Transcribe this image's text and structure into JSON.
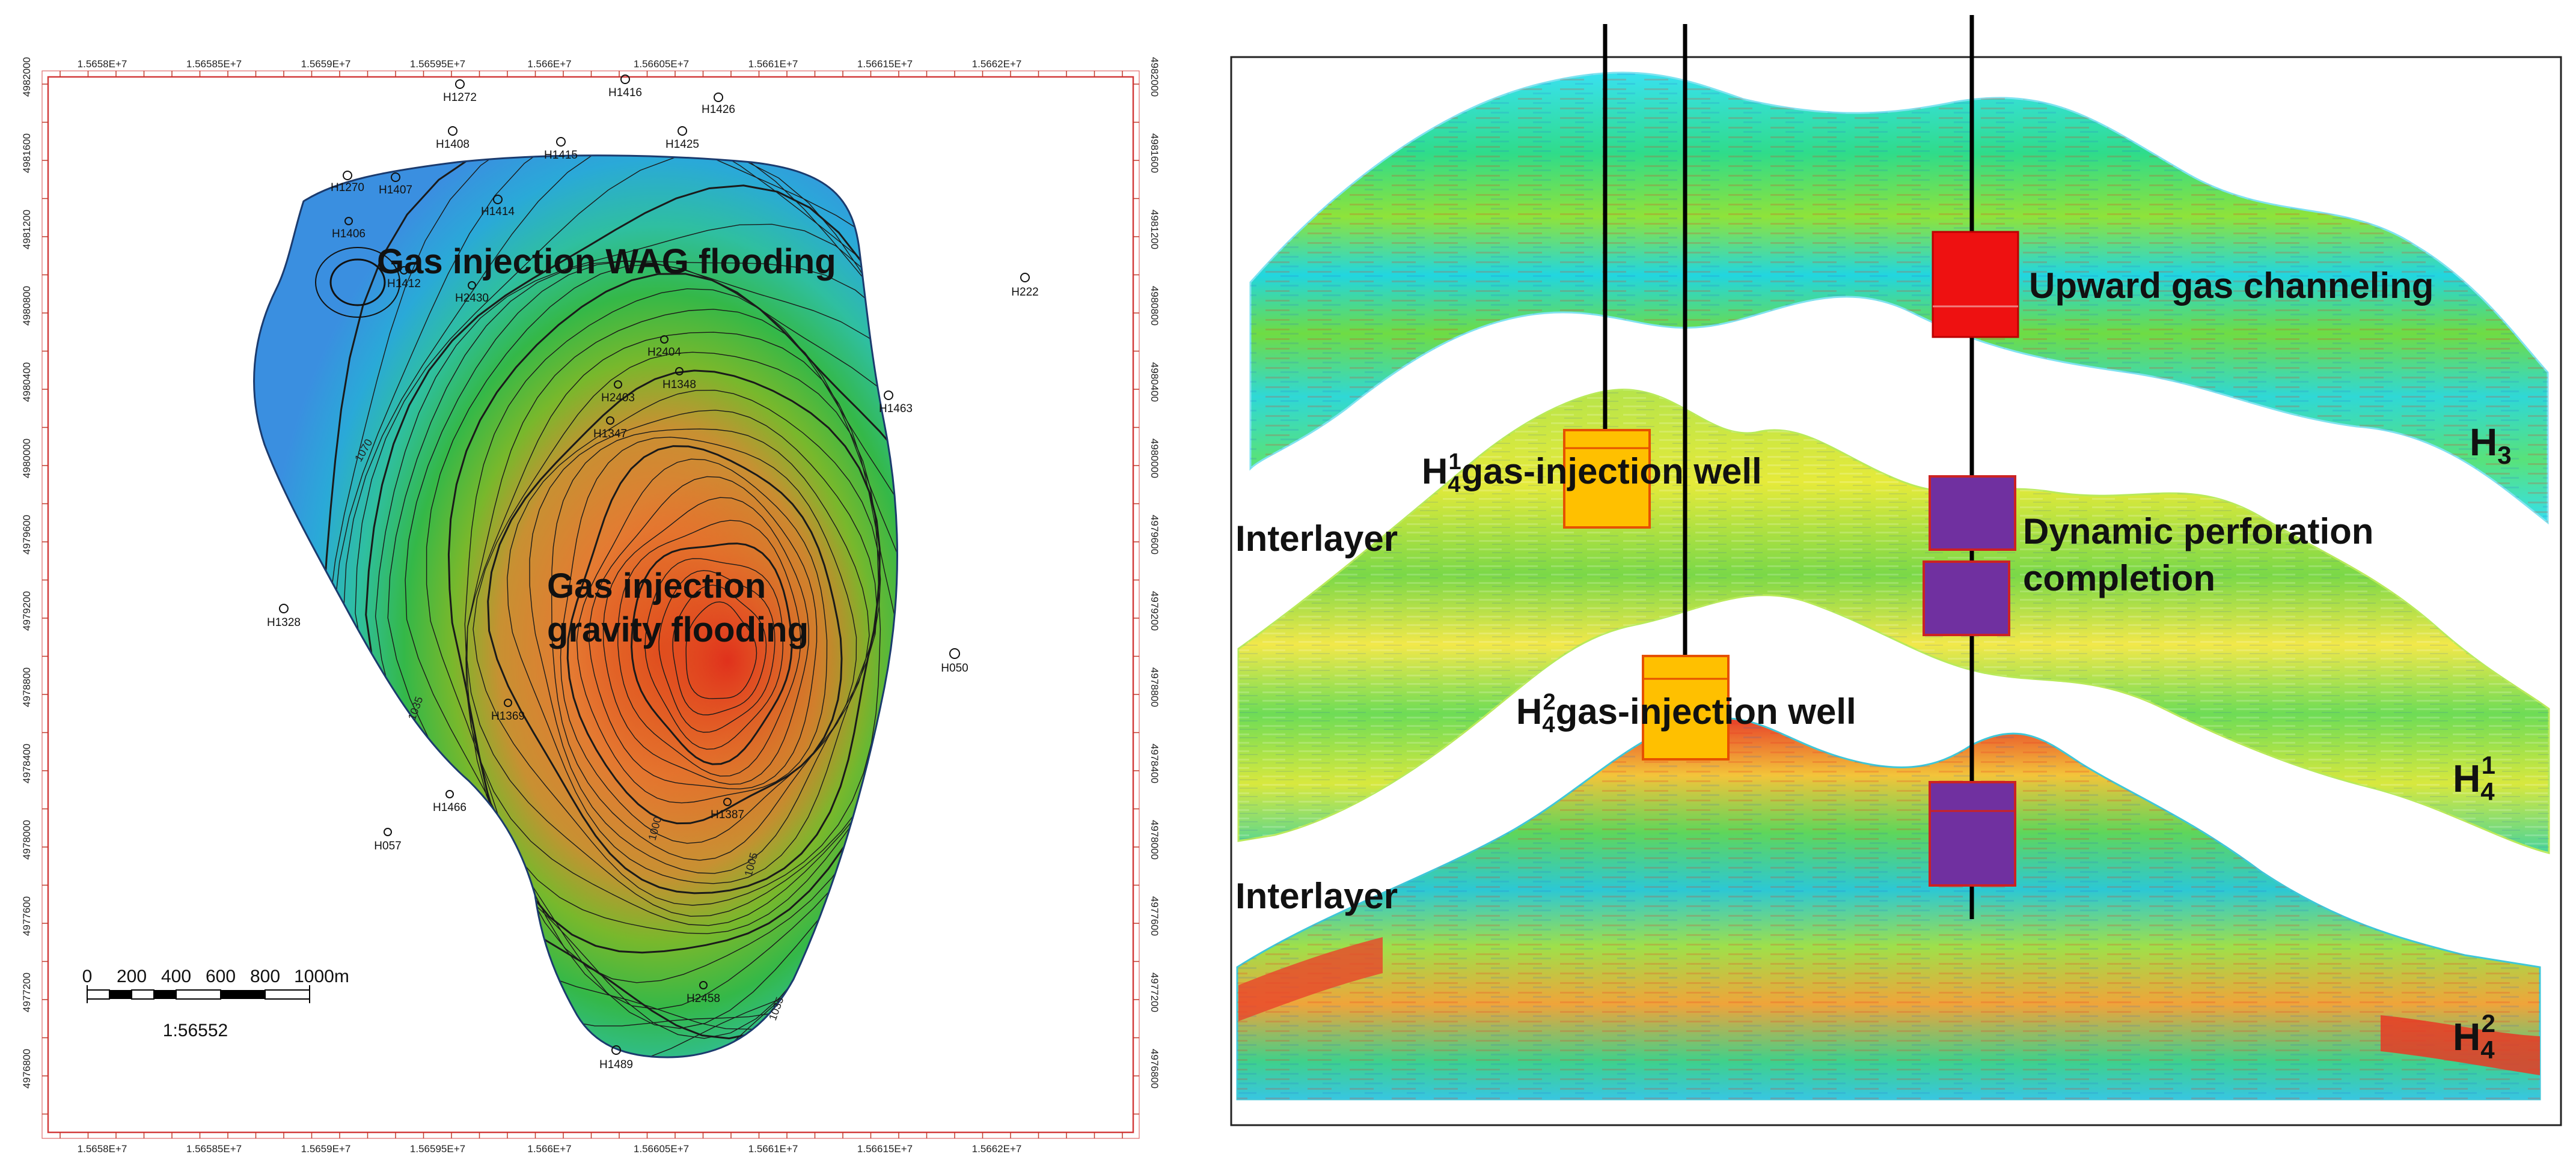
{
  "left_map": {
    "x_ticks": [
      "1.5658E+7",
      "1.56585E+7",
      "1.5659E+7",
      "1.56595E+7",
      "1.566E+7",
      "1.56605E+7",
      "1.5661E+7",
      "1.56615E+7",
      "1.5662E+7"
    ],
    "y_ticks": [
      "4982000",
      "4981600",
      "4981200",
      "4980800",
      "4980400",
      "4980000",
      "4979600",
      "4979200",
      "4978800",
      "4978400",
      "4978000",
      "4977600",
      "4977200",
      "4976800"
    ],
    "wells": [
      {
        "name": "H1272"
      },
      {
        "name": "H1416"
      },
      {
        "name": "H1426"
      },
      {
        "name": "H1408"
      },
      {
        "name": "H1415"
      },
      {
        "name": "H1425"
      },
      {
        "name": "H1270"
      },
      {
        "name": "H1407"
      },
      {
        "name": "H1414"
      },
      {
        "name": "H1406"
      },
      {
        "name": "H1412"
      },
      {
        "name": "H2430"
      },
      {
        "name": "H2404"
      },
      {
        "name": "H2403"
      },
      {
        "name": "H1348"
      },
      {
        "name": "H1347"
      },
      {
        "name": "H1463"
      },
      {
        "name": "H222"
      },
      {
        "name": "H1328"
      },
      {
        "name": "H050"
      },
      {
        "name": "H057"
      },
      {
        "name": "H1489"
      },
      {
        "name": "H2458"
      },
      {
        "name": "H1387"
      },
      {
        "name": "H1369"
      },
      {
        "name": "H1466"
      }
    ],
    "contour_labels": [
      "1070",
      "1035",
      "1000",
      "1005"
    ],
    "label_wag": "Gas injection WAG flooding",
    "label_gravity_1": "Gas injection",
    "label_gravity_2": "gravity flooding",
    "scale_ticks": [
      "0",
      "200",
      "400",
      "600",
      "800",
      "1000m"
    ],
    "scale_ratio": "1:56552"
  },
  "right_section": {
    "label_upward": "Upward gas channeling",
    "label_h41_base": "H",
    "label_h41_sub": "4",
    "label_h41_sup": "1",
    "label_h41_rest": "gas-injection well",
    "label_interlayer_1": "Interlayer",
    "label_dynamic_1": "Dynamic perforation",
    "label_dynamic_2": "completion",
    "label_h42_base": "H",
    "label_h42_sub": "4",
    "label_h42_sup": "2",
    "label_h42_rest": "gas-injection well",
    "label_interlayer_2": "Interlayer",
    "layer_h3_base": "H",
    "layer_h3_sub": "3",
    "layer_h41_base": "H",
    "layer_h41_sub": "4",
    "layer_h41_sup": "1",
    "layer_h42_base": "H",
    "layer_h42_sub": "4",
    "layer_h42_sup": "2",
    "colors": {
      "injection_box": "#ffc000",
      "injection_border": "#e65100",
      "channeling_box": "#ee1111",
      "perforation_box": "#7030a0",
      "box_border": "#cc2222",
      "well_line": "#000000"
    }
  }
}
